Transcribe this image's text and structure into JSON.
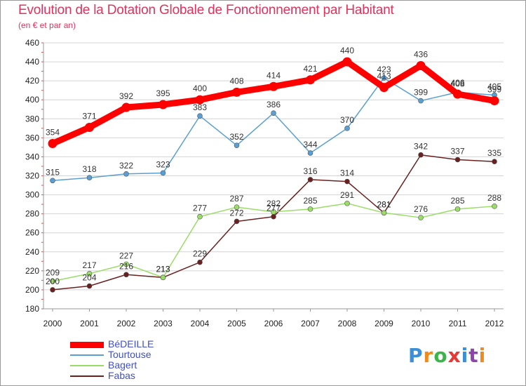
{
  "title": "Evolution de la Dotation Globale de Fonctionnement par Habitant",
  "subtitle": "(en € et par an)",
  "logo": {
    "text": "Proxiti",
    "colors": [
      "#3b8fd6",
      "#f08a1c",
      "#3bb54a",
      "#e53935",
      "#3b8fd6",
      "#8e44ad",
      "#f08a1c"
    ]
  },
  "chart_data": {
    "type": "line",
    "title": "Evolution de la Dotation Globale de Fonctionnement par Habitant",
    "subtitle": "(en € et par an)",
    "x": [
      "2000",
      "2001",
      "2002",
      "2003",
      "2004",
      "2005",
      "2006",
      "2007",
      "2008",
      "2009",
      "2010",
      "2011",
      "2012"
    ],
    "ylim": [
      180,
      460
    ],
    "yticks": [
      180,
      200,
      220,
      240,
      260,
      280,
      300,
      320,
      340,
      360,
      380,
      400,
      420,
      440,
      460
    ],
    "grid": "horizontal",
    "legend": "bottom-left",
    "series": [
      {
        "name": "BéDEILLE",
        "color": "#ff0000",
        "values": [
          354,
          371,
          392,
          395,
          400,
          408,
          414,
          421,
          440,
          413,
          436,
          406,
          399
        ]
      },
      {
        "name": "Tourtouse",
        "color": "#5a9fd4",
        "values": [
          315,
          318,
          322,
          323,
          383,
          352,
          386,
          344,
          370,
          423,
          399,
          408,
          405
        ]
      },
      {
        "name": "Bagert",
        "color": "#99dd66",
        "values": [
          209,
          217,
          227,
          213,
          277,
          287,
          282,
          285,
          291,
          281,
          276,
          285,
          288
        ]
      },
      {
        "name": "Fabas",
        "color": "#6b2020",
        "values": [
          200,
          204,
          216,
          213,
          229,
          272,
          277,
          316,
          314,
          281,
          342,
          337,
          335
        ]
      }
    ]
  }
}
